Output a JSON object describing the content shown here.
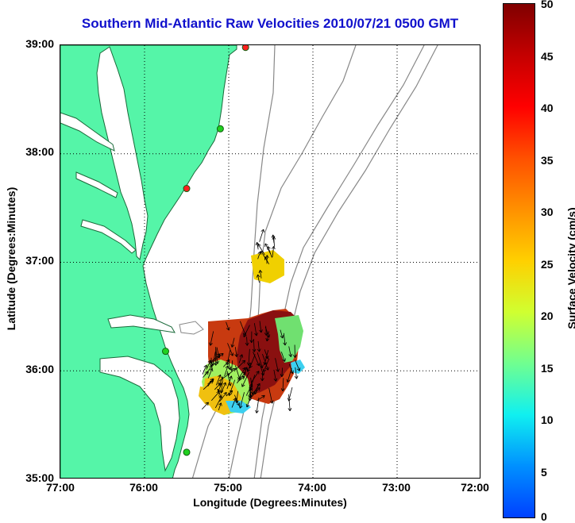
{
  "title": "Southern Mid-Atlantic Raw Velocities 2010/07/21 0500 GMT",
  "map": {
    "x_axis_label": "Longitude (Degrees:Minutes)",
    "y_axis_label": "Latitude (Degrees:Minutes)",
    "x_ticks": [
      "77:00",
      "76:00",
      "75:00",
      "74:00",
      "73:00",
      "72:00"
    ],
    "y_ticks": [
      "39:00",
      "38:00",
      "37:00",
      "36:00",
      "35:00"
    ],
    "longitude_range_deg_w": [
      77,
      72
    ],
    "latitude_range_deg_n": [
      35,
      39
    ],
    "grid": "dotted",
    "land_color": "#55f5a8",
    "contour_color": "#888888",
    "stations": [
      {
        "lon": 74.8,
        "lat": 38.98,
        "status": "red"
      },
      {
        "lon": 75.1,
        "lat": 38.23,
        "status": "green"
      },
      {
        "lon": 75.5,
        "lat": 37.68,
        "status": "red"
      },
      {
        "lon": 75.75,
        "lat": 36.18,
        "status": "green"
      },
      {
        "lon": 75.5,
        "lat": 35.25,
        "status": "green"
      }
    ]
  },
  "colorbar": {
    "label": "Surface Velocity (cm/s)",
    "ticks": [
      "50",
      "45",
      "40",
      "35",
      "30",
      "25",
      "20",
      "15",
      "10",
      "5",
      "0"
    ],
    "min": 0,
    "max": 50,
    "colormap": "jet"
  }
}
